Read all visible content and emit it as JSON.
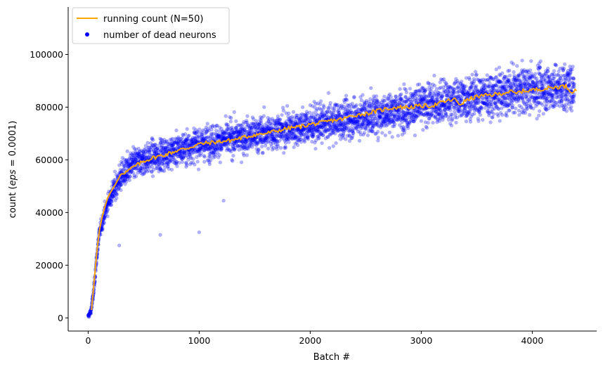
{
  "chart_data": {
    "type": "scatter",
    "xlabel": "Batch #",
    "ylabel_prefix": "count (",
    "ylabel_math": "eps",
    "ylabel_suffix": " = 0.0001)",
    "xlim": [
      -180,
      4580
    ],
    "ylim": [
      -5000,
      118000
    ],
    "xticks": [
      0,
      1000,
      2000,
      3000,
      4000
    ],
    "yticks": [
      0,
      20000,
      40000,
      60000,
      80000,
      100000
    ],
    "grid": false,
    "legend_position": "top-left",
    "legend": [
      {
        "label": "running count (N=50)",
        "kind": "line",
        "color": "#ffa500"
      },
      {
        "label": "number of dead neurons",
        "kind": "marker",
        "color": "#0000ff"
      }
    ],
    "series": [
      {
        "name": "number of dead neurons",
        "kind": "scatter",
        "color": "#0000ff",
        "opacity": 0.3,
        "n_points": 4380,
        "trend_x": [
          0,
          25,
          50,
          75,
          100,
          150,
          200,
          250,
          300,
          400,
          500,
          700,
          1000,
          1500,
          2000,
          2500,
          3000,
          3500,
          4000,
          4380
        ],
        "trend_y": [
          500,
          2500,
          10000,
          22000,
          32000,
          40000,
          46000,
          50000,
          54000,
          58000,
          60000,
          62500,
          66000,
          69500,
          73000,
          76500,
          80500,
          84000,
          87000,
          87500
        ],
        "spread": 9000,
        "outliers": [
          [
            650,
            31500
          ],
          [
            1000,
            32500
          ],
          [
            280,
            27500
          ],
          [
            1220,
            44500
          ]
        ]
      },
      {
        "name": "running count (N=50)",
        "kind": "line",
        "color": "#ffa500",
        "x": [
          30,
          50,
          75,
          100,
          125,
          150,
          175,
          200,
          250,
          300,
          350,
          400,
          500,
          600,
          700,
          800,
          900,
          1000,
          1100,
          1200,
          1300,
          1400,
          1500,
          1600,
          1700,
          1800,
          1900,
          2000,
          2100,
          2200,
          2300,
          2400,
          2500,
          2600,
          2700,
          2800,
          2900,
          3000,
          3100,
          3200,
          3300,
          3350,
          3400,
          3500,
          3600,
          3700,
          3800,
          3850,
          3900,
          4000,
          4100,
          4200,
          4300,
          4350,
          4400
        ],
        "y": [
          3000,
          12000,
          24000,
          33000,
          38000,
          42000,
          45500,
          47500,
          51000,
          55000,
          55500,
          57000,
          59500,
          61000,
          62000,
          63500,
          64500,
          66000,
          66500,
          67000,
          67500,
          68500,
          69500,
          70000,
          71000,
          72000,
          72500,
          73500,
          74000,
          75000,
          75500,
          77000,
          77500,
          78500,
          79500,
          80000,
          80000,
          80500,
          80500,
          82000,
          83000,
          81000,
          82500,
          84000,
          84500,
          85000,
          86000,
          85000,
          86000,
          86500,
          87000,
          87500,
          88000,
          86000,
          86500
        ]
      }
    ]
  }
}
